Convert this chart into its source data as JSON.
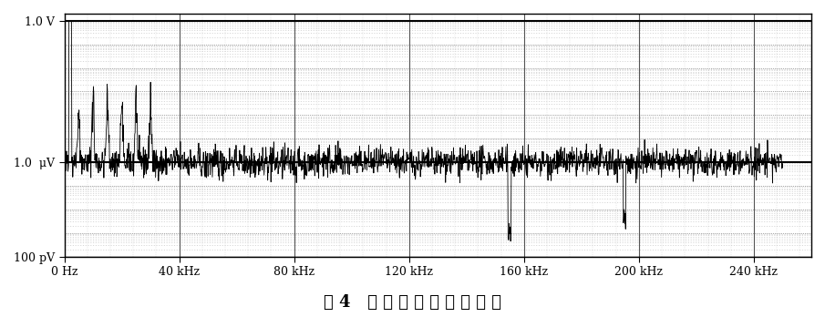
{
  "title": "图 4   干 扰 噪 声 随 频 率 关 系",
  "xmin": 0,
  "xmax": 260000,
  "xticks": [
    0,
    40000,
    80000,
    120000,
    160000,
    200000,
    240000
  ],
  "xtick_labels": [
    "0 Hz",
    "40 kHz",
    "80 kHz",
    "120 kHz",
    "160 kHz",
    "200 kHz",
    "240 kHz"
  ],
  "ymin_log": -10,
  "ymax_log": 0,
  "ytick_positions": [
    -10,
    -6,
    0
  ],
  "ytick_labels": [
    "100 pV",
    "1.0  μV",
    "1.0 V"
  ],
  "hline_1V": 1.0,
  "hline_1uV": 1e-06,
  "hline_100pV": 1e-10,
  "bg_color": "#ffffff",
  "line_color": "#000000",
  "grid_major_color": "#000000",
  "grid_minor_color": "#aaaaaa",
  "noise_seed": 42
}
